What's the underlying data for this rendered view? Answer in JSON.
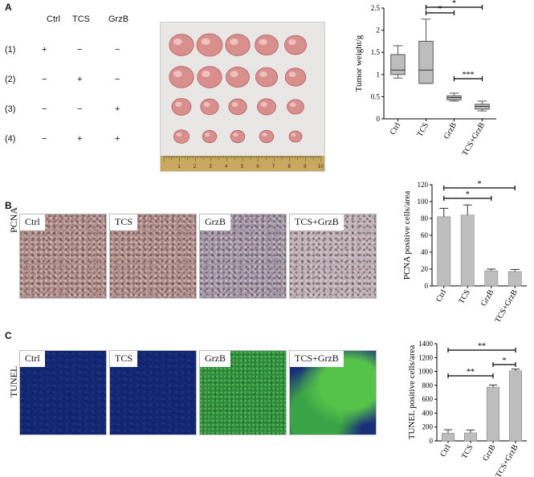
{
  "panels": {
    "a": {
      "letter": "A"
    },
    "b": {
      "letter": "B",
      "side_label": "PCNA"
    },
    "c": {
      "letter": "C",
      "side_label": "TUNEL"
    }
  },
  "treatment_table": {
    "columns": [
      "Ctrl",
      "TCS",
      "GrzB"
    ],
    "rows": [
      {
        "label": "(1)",
        "cells": [
          "+",
          "−",
          "−"
        ]
      },
      {
        "label": "(2)",
        "cells": [
          "−",
          "+",
          "−"
        ]
      },
      {
        "label": "(3)",
        "cells": [
          "−",
          "−",
          "+"
        ]
      },
      {
        "label": "(4)",
        "cells": [
          "−",
          "+",
          "+"
        ]
      }
    ]
  },
  "tumor_photo": {
    "ruler_numbers": [
      "1",
      "2",
      "3",
      "4",
      "5",
      "6",
      "7",
      "8",
      "9",
      "10"
    ],
    "rows": [
      {
        "count": 5,
        "sizes": [
          0.95,
          1.0,
          0.95,
          0.9,
          0.85
        ]
      },
      {
        "count": 5,
        "sizes": [
          0.95,
          0.95,
          0.9,
          0.85,
          0.8
        ]
      },
      {
        "count": 5,
        "sizes": [
          0.75,
          0.7,
          0.7,
          0.72,
          0.65
        ]
      },
      {
        "count": 5,
        "sizes": [
          0.6,
          0.55,
          0.55,
          0.55,
          0.5
        ]
      }
    ],
    "colors": {
      "tumor": "#d98f8c",
      "tumor_dark": "#b2605e",
      "background": "#e8e7e5",
      "ruler": "#c9a860"
    }
  },
  "micrographs": {
    "pcna": [
      {
        "label": "Ctrl",
        "style": "ihc"
      },
      {
        "label": "TCS",
        "style": "ihc"
      },
      {
        "label": "GrzB",
        "style": "ihc blue"
      },
      {
        "label": "TCS+GrzB",
        "style": "ihc pale"
      }
    ],
    "tunel": [
      {
        "label": "Ctrl",
        "style": "tunel"
      },
      {
        "label": "TCS",
        "style": "tunel"
      },
      {
        "label": "GrzB",
        "style": "tunel green"
      },
      {
        "label": "TCS+GrzB",
        "style": "tunel mixed"
      }
    ]
  },
  "chart_data": [
    {
      "type": "box",
      "ylabel": "Tumor weight/g",
      "categories": [
        "Ctrl",
        "TCS",
        "GrzB",
        "TCS+GrzB"
      ],
      "ylim": [
        0,
        2.5
      ],
      "yticks": [
        "0",
        "0.5",
        "1",
        "1.5",
        "2",
        "2.5"
      ],
      "boxes": [
        {
          "min": 0.92,
          "q1": 1.0,
          "median": 1.1,
          "q3": 1.45,
          "max": 1.65
        },
        {
          "min": 0.8,
          "q1": 0.8,
          "median": 1.1,
          "q3": 1.75,
          "max": 2.25
        },
        {
          "min": 0.4,
          "q1": 0.43,
          "median": 0.48,
          "q3": 0.52,
          "max": 0.58
        },
        {
          "min": 0.18,
          "q1": 0.22,
          "median": 0.28,
          "q3": 0.33,
          "max": 0.4
        }
      ],
      "color": "#bdbdbd",
      "significance": [
        {
          "from": 1,
          "to": 2,
          "label": "*"
        },
        {
          "from": 1,
          "to": 3,
          "label": "*"
        },
        {
          "from": 2,
          "to": 3,
          "label": "***"
        }
      ]
    },
    {
      "type": "bar",
      "ylabel": "PCNA positive cells/area",
      "categories": [
        "Ctrl",
        "TCS",
        "GrzB",
        "TCS+GrzB"
      ],
      "values": [
        82,
        84,
        18,
        17
      ],
      "errors": [
        10,
        12,
        2,
        2.5
      ],
      "ylim": [
        0,
        120
      ],
      "yticks": [
        "0",
        "20",
        "40",
        "60",
        "80",
        "100",
        "120"
      ],
      "color": "#bdbdbd",
      "significance": [
        {
          "from": 0,
          "to": 2,
          "label": "*"
        },
        {
          "from": 0,
          "to": 3,
          "label": "*"
        }
      ]
    },
    {
      "type": "bar",
      "ylabel": "TUNEL positive cells/area",
      "categories": [
        "Ctrl",
        "TCS",
        "GrzB",
        "TCS+GrzB"
      ],
      "values": [
        110,
        115,
        775,
        1010
      ],
      "errors": [
        50,
        40,
        30,
        25
      ],
      "ylim": [
        0,
        1400
      ],
      "yticks": [
        "0",
        "200",
        "400",
        "600",
        "800",
        "1000",
        "1200",
        "1400"
      ],
      "color": "#bdbdbd",
      "significance": [
        {
          "from": 0,
          "to": 3,
          "label": "**"
        },
        {
          "from": 0,
          "to": 2,
          "label": "**"
        },
        {
          "from": 2,
          "to": 3,
          "label": "*"
        }
      ]
    }
  ]
}
